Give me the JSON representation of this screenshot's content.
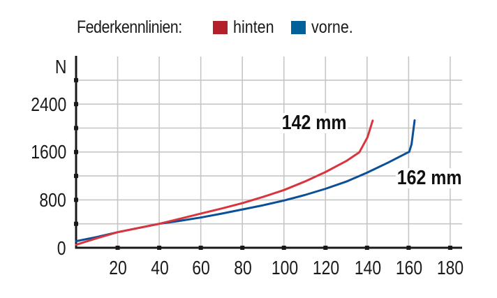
{
  "legend": {
    "title": "Federkennlinien:",
    "items": [
      {
        "label": "hinten",
        "color": "#b3202a"
      },
      {
        "label": "vorne.",
        "color": "#00609a"
      }
    ]
  },
  "axes": {
    "y_unit": "N",
    "y_ticks": [
      "0",
      "800",
      "1600",
      "2400"
    ],
    "x_ticks": [
      "20",
      "40",
      "60",
      "80",
      "100",
      "120",
      "140",
      "160",
      "180"
    ]
  },
  "annotations": {
    "rear": "142 mm",
    "front": "162 mm"
  },
  "colors": {
    "rear_line": "#d8353d",
    "front_line": "#0b4f97",
    "grid": "#c6c6c6",
    "axis": "#1a1a1a"
  },
  "chart_data": {
    "type": "line",
    "title": "Federkennlinien",
    "xlabel": "",
    "ylabel": "N",
    "xlim": [
      0,
      185
    ],
    "ylim": [
      0,
      2800
    ],
    "x_ticks": [
      20,
      40,
      60,
      80,
      100,
      120,
      140,
      160,
      180
    ],
    "y_ticks_labeled": [
      0,
      800,
      1600,
      2400
    ],
    "y_grid_step": 400,
    "grid": true,
    "legend_position": "top",
    "series": [
      {
        "name": "hinten",
        "color": "#d8353d",
        "x": [
          0,
          10,
          20,
          30,
          40,
          50,
          60,
          70,
          80,
          90,
          100,
          110,
          120,
          130,
          136.3,
          140.2,
          142.7
        ],
        "y": [
          50,
          160,
          260,
          330,
          400,
          485,
          570,
          655,
          745,
          850,
          965,
          1105,
          1265,
          1450,
          1595,
          1845,
          2125
        ]
      },
      {
        "name": "vorne",
        "color": "#0b4f97",
        "x": [
          0,
          10,
          20,
          30,
          40,
          50,
          60,
          70,
          80,
          90,
          100,
          110,
          120,
          130,
          140,
          150,
          160.3,
          161.4,
          162.9
        ],
        "y": [
          110,
          180,
          260,
          330,
          400,
          450,
          505,
          570,
          640,
          710,
          790,
          880,
          985,
          1105,
          1255,
          1420,
          1605,
          1730,
          2130
        ]
      }
    ],
    "annotations": [
      {
        "text": "142 mm",
        "series": "hinten"
      },
      {
        "text": "162 mm",
        "series": "vorne"
      }
    ]
  }
}
